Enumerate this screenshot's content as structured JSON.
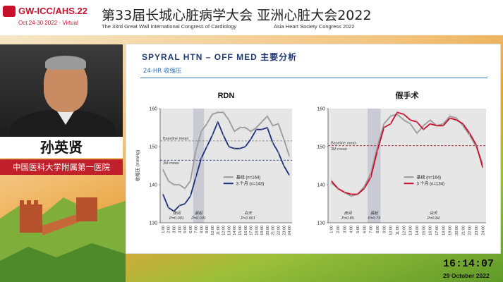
{
  "header": {
    "logo": "GW-ICC/AHS.22",
    "logo_dates": "Oct.24-30 2022 · Virtual",
    "title_cn": "第33届长城心脏病学大会  亚洲心脏大会2022",
    "title_en": "The 33rd Great Wall International Congress of Cardiology",
    "title_en2": "Asia Heart Society Congress 2022"
  },
  "speaker": {
    "name": "孙英贤",
    "affiliation": "中国医科大学附属第一医院"
  },
  "slide": {
    "title": "SPYRAL  HTN  – OFF MED  主要分析",
    "subtitle": "24-HR 收缩压"
  },
  "clock": {
    "time": "16:14:07",
    "date": "29 October 2022"
  },
  "colors": {
    "rdn_followup": "#1a2f7a",
    "sham_followup": "#c8102e",
    "baseline": "#9a9a9a",
    "header_red": "#c8102e"
  },
  "chart_data": [
    {
      "type": "line",
      "title": "RDN",
      "ylabel": "收缩压 (mmHg)",
      "ylim": [
        130,
        160
      ],
      "yticks": [
        "160",
        "150",
        "140",
        "130"
      ],
      "x": [
        "1:00",
        "2:00",
        "3:00",
        "4:00",
        "5:00",
        "6:00",
        "7:00",
        "8:00",
        "9:00",
        "10:00",
        "11:00",
        "12:00",
        "13:00",
        "14:00",
        "15:00",
        "16:00",
        "17:00",
        "18:00",
        "19:00",
        "20:00",
        "21:00",
        "22:00",
        "23:00",
        "24:00"
      ],
      "series": [
        {
          "name": "基线 (n=164)",
          "values": [
            144,
            141,
            140,
            140,
            139,
            141,
            149,
            154,
            156,
            158.5,
            159,
            159,
            157,
            154,
            155,
            155,
            154,
            155,
            156.5,
            158,
            155.5,
            156,
            152,
            147.5
          ]
        },
        {
          "name": "3 个月 (n=143)",
          "values": [
            137.5,
            134,
            133,
            134.5,
            135,
            137,
            142,
            147,
            150,
            153,
            156.5,
            153,
            150,
            149.5,
            149.5,
            150,
            152,
            154.5,
            154.5,
            155,
            151,
            148.5,
            145,
            142.5
          ]
        }
      ],
      "reference_lines": [
        "Baseline mean",
        "3M mean"
      ],
      "shaded_periods": [
        "夜间",
        "晨起",
        "白天"
      ],
      "p_values": [
        "P=0.001",
        "P=0.001",
        "P<0.001"
      ]
    },
    {
      "type": "line",
      "title": "假手术",
      "ylim": [
        130,
        160
      ],
      "yticks": [
        "160",
        "150",
        "140",
        "130"
      ],
      "x": [
        "1:00",
        "2:00",
        "3:00",
        "4:00",
        "5:00",
        "6:00",
        "7:00",
        "8:00",
        "9:00",
        "10:00",
        "11:00",
        "12:00",
        "13:00",
        "14:00",
        "15:00",
        "16:00",
        "17:00",
        "18:00",
        "19:00",
        "20:00",
        "21:00",
        "22:00",
        "23:00",
        "24:00"
      ],
      "series": [
        {
          "name": "基线 (n=164)",
          "values": [
            140.5,
            139,
            138,
            137,
            137.5,
            139.5,
            143,
            150,
            156,
            158,
            158.5,
            157,
            156,
            153.5,
            155.5,
            157,
            155.5,
            156,
            158,
            157.5,
            155.5,
            153,
            150,
            145.5
          ]
        },
        {
          "name": "3 个月 (n=134)",
          "values": [
            141,
            139,
            138,
            137.5,
            137.5,
            139,
            142,
            149,
            155,
            156,
            159,
            158.5,
            157,
            156.5,
            154.5,
            156,
            155.5,
            155.5,
            157.5,
            157,
            156,
            153.5,
            150.5,
            144.5
          ]
        }
      ],
      "reference_lines": [
        "Baseline mean",
        "3M mean"
      ],
      "shaded_periods": [
        "夜间",
        "晨起",
        "白天"
      ],
      "p_values": [
        "P=0.85",
        "P=0.73",
        "P=0.84"
      ]
    }
  ]
}
